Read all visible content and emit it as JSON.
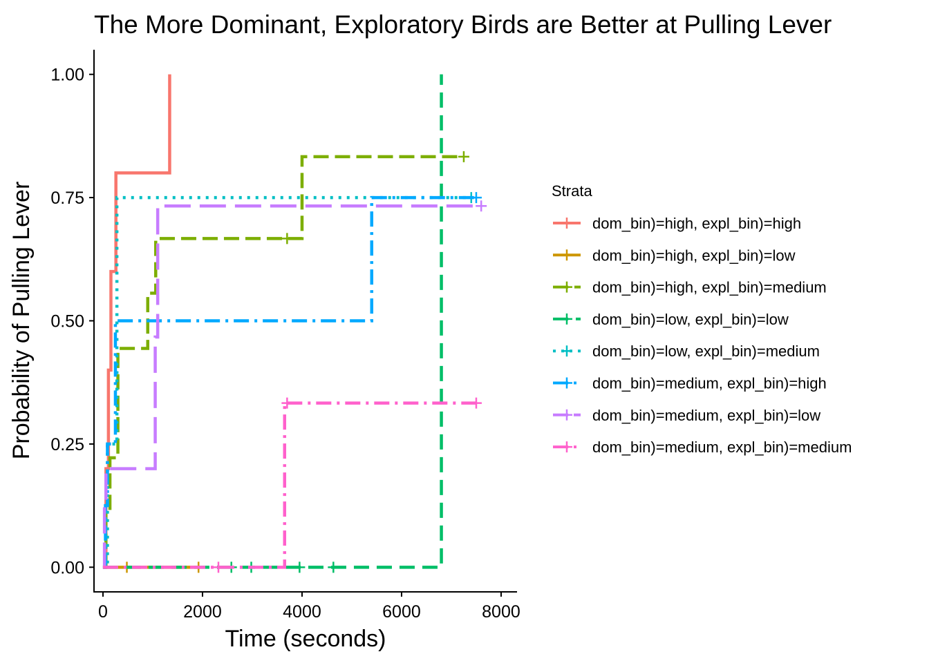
{
  "chart_data": {
    "type": "line",
    "title": "The More Dominant, Exploratory Birds are Better at Pulling Lever",
    "xlabel": "Time (seconds)",
    "ylabel": "Probability of Pulling Lever",
    "xlim": [
      -180,
      8320
    ],
    "ylim": [
      -0.05,
      1.05
    ],
    "xticks": [
      0,
      2000,
      4000,
      6000,
      8000
    ],
    "xtick_labels": [
      "0",
      "2000",
      "4000",
      "6000",
      "8000"
    ],
    "yticks": [
      0,
      0.25,
      0.5,
      0.75,
      1.0
    ],
    "ytick_labels": [
      "0.00",
      "0.25",
      "0.50",
      "0.75",
      "1.00"
    ],
    "grid": false,
    "step": true,
    "legend": {
      "title": "Strata",
      "position": "right"
    },
    "series": [
      {
        "name": "dom_bin)=high, expl_bin)=high",
        "color": "#F8766D",
        "dash": "",
        "x": [
          0,
          60,
          110,
          160,
          260,
          1340
        ],
        "y": [
          0,
          0.2,
          0.4,
          0.6,
          0.8,
          1.0
        ],
        "censor": []
      },
      {
        "name": "dom_bin)=high, expl_bin)=low",
        "color": "#CD9600",
        "dash": "",
        "x": [
          0,
          1950
        ],
        "y": [
          0,
          0
        ],
        "censor": [
          480,
          1920
        ]
      },
      {
        "name": "dom_bin)=high, expl_bin)=medium",
        "color": "#7CAE00",
        "dash": "22,9",
        "x": [
          0,
          60,
          140,
          300,
          900,
          1060,
          4000,
          7250
        ],
        "y": [
          0,
          0.111,
          0.222,
          0.444,
          0.556,
          0.667,
          0.833,
          0.833
        ],
        "censor": [
          3700,
          7250
        ]
      },
      {
        "name": "dom_bin)=low, expl_bin)=low",
        "color": "#00BE67",
        "dash": "22,11",
        "x": [
          0,
          6800,
          6800
        ],
        "y": [
          0,
          0,
          1.0
        ],
        "censor": [
          2580,
          2980,
          3950,
          4630
        ]
      },
      {
        "name": "dom_bin)=low, expl_bin)=medium",
        "color": "#00BFC4",
        "dash": "4,8",
        "x": [
          0,
          90,
          280,
          7400
        ],
        "y": [
          0,
          0.25,
          0.75,
          0.75
        ],
        "censor": [
          7400
        ]
      },
      {
        "name": "dom_bin)=medium, expl_bin)=high",
        "color": "#00A9FF",
        "dash": "22,8,4,8",
        "x": [
          0,
          50,
          90,
          250,
          5400,
          7500
        ],
        "y": [
          0,
          0.125,
          0.25,
          0.5,
          0.75,
          0.75
        ],
        "censor": [
          7500
        ]
      },
      {
        "name": "dom_bin)=medium, expl_bin)=low",
        "color": "#C77CFF",
        "dash": "38,13",
        "x": [
          0,
          30,
          60,
          1050,
          1100,
          7600
        ],
        "y": [
          0,
          0.133,
          0.2,
          0.467,
          0.733,
          0.733
        ],
        "censor": [
          7600
        ]
      },
      {
        "name": "dom_bin)=medium, expl_bin)=medium",
        "color": "#FF61CC",
        "dash": "22,8,4,8",
        "x": [
          0,
          3650,
          7500
        ],
        "y": [
          0,
          0.333,
          0.333
        ],
        "censor": [
          2320,
          3700,
          7500
        ]
      }
    ]
  }
}
